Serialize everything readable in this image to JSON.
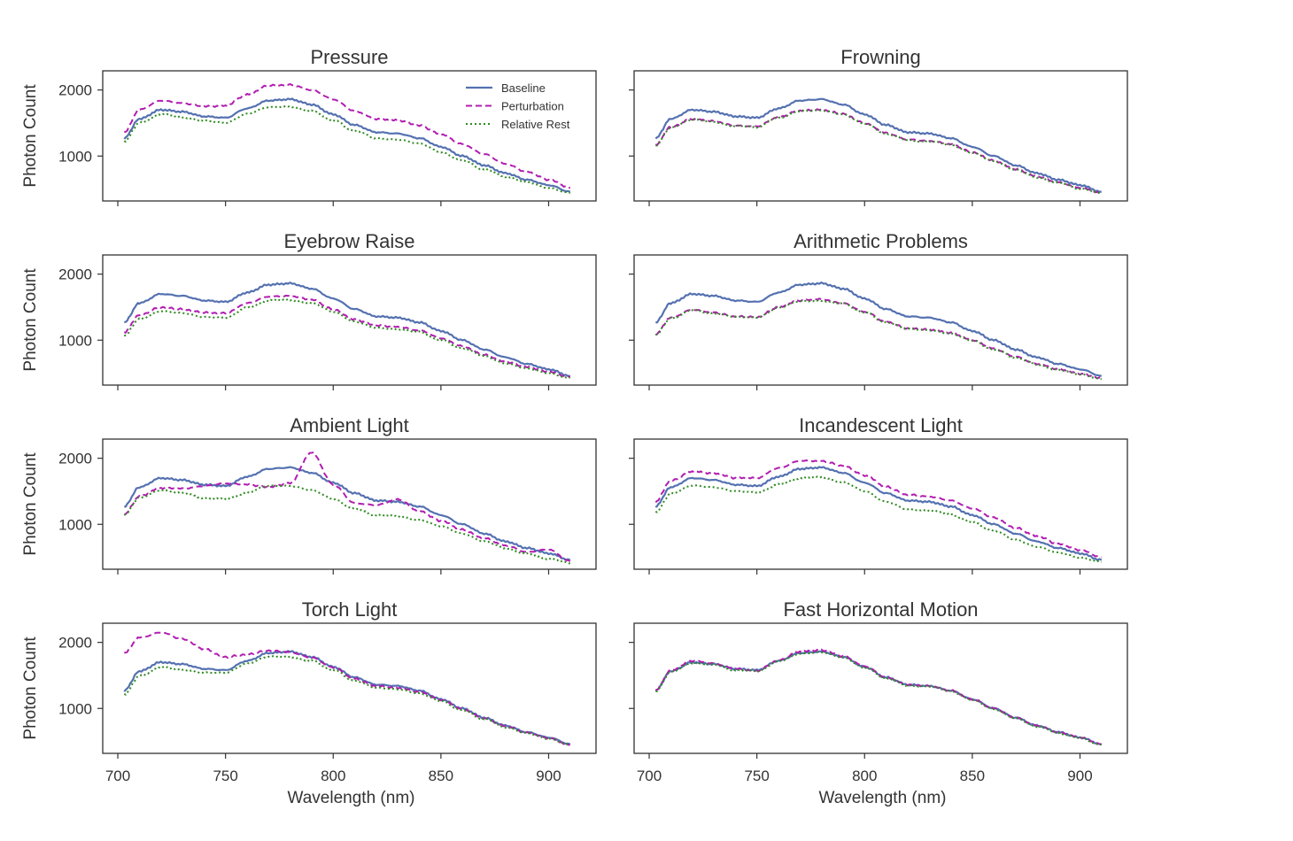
{
  "chart_data": {
    "type": "line",
    "layout": "grid 4 rows x 2 columns",
    "shared_x_axis": {
      "label": "Wavelength (nm)",
      "xlim": [
        693,
        922
      ],
      "ticks": [
        700,
        750,
        800,
        850,
        900
      ],
      "tick_labels": [
        "700",
        "750",
        "800",
        "850",
        "900"
      ]
    },
    "shared_y_axis": {
      "label": "Photon Count",
      "ylim": [
        320,
        2290
      ],
      "ticks": [
        1000,
        2000
      ],
      "tick_labels": [
        "1000",
        "2000"
      ]
    },
    "legend": {
      "location": "top-right of first panel",
      "entries": [
        {
          "name": "Baseline",
          "style": "solid",
          "color": "#5471b0"
        },
        {
          "name": "Perturbation",
          "style": "dashed",
          "color": "#b11db1"
        },
        {
          "name": "Relative Rest",
          "style": "dotted",
          "color": "#2f8a22"
        }
      ]
    },
    "x": [
      703,
      710,
      720,
      730,
      740,
      750,
      760,
      770,
      780,
      790,
      800,
      810,
      820,
      830,
      840,
      850,
      860,
      870,
      880,
      890,
      900,
      910
    ],
    "baseline_values": [
      1270,
      1560,
      1700,
      1670,
      1600,
      1580,
      1720,
      1840,
      1860,
      1780,
      1630,
      1470,
      1360,
      1340,
      1270,
      1140,
      1000,
      860,
      740,
      640,
      560,
      460
    ],
    "panels": [
      {
        "title": "Pressure",
        "series": [
          {
            "name": "Baseline",
            "values": [
              1270,
              1560,
              1700,
              1670,
              1600,
              1580,
              1720,
              1840,
              1860,
              1780,
              1630,
              1470,
              1360,
              1340,
              1270,
              1140,
              1000,
              860,
              740,
              640,
              560,
              460
            ]
          },
          {
            "name": "Perturbation",
            "values": [
              1360,
              1700,
              1840,
              1800,
              1750,
              1760,
              1930,
              2070,
              2080,
              2000,
              1860,
              1680,
              1560,
              1540,
              1460,
              1330,
              1180,
              1030,
              880,
              760,
              640,
              520
            ]
          },
          {
            "name": "Relative Rest",
            "values": [
              1220,
              1500,
              1630,
              1590,
              1530,
              1500,
              1640,
              1740,
              1750,
              1680,
              1540,
              1380,
              1270,
              1250,
              1190,
              1060,
              930,
              800,
              690,
              600,
              520,
              440
            ]
          }
        ]
      },
      {
        "title": "Frowning",
        "series": [
          {
            "name": "Baseline",
            "values": [
              1270,
              1560,
              1700,
              1670,
              1600,
              1580,
              1720,
              1840,
              1860,
              1780,
              1630,
              1470,
              1360,
              1340,
              1270,
              1140,
              1000,
              860,
              740,
              640,
              560,
              460
            ]
          },
          {
            "name": "Perturbation",
            "values": [
              1170,
              1440,
              1560,
              1530,
              1460,
              1450,
              1590,
              1690,
              1700,
              1640,
              1500,
              1350,
              1250,
              1230,
              1180,
              1060,
              930,
              800,
              690,
              600,
              520,
              440
            ]
          },
          {
            "name": "Relative Rest",
            "values": [
              1160,
              1430,
              1550,
              1520,
              1450,
              1440,
              1580,
              1680,
              1690,
              1630,
              1490,
              1340,
              1240,
              1220,
              1170,
              1050,
              920,
              790,
              680,
              590,
              510,
              430
            ]
          }
        ]
      },
      {
        "title": "Eyebrow Raise",
        "series": [
          {
            "name": "Baseline",
            "values": [
              1270,
              1560,
              1700,
              1670,
              1600,
              1580,
              1720,
              1840,
              1860,
              1780,
              1630,
              1470,
              1360,
              1340,
              1270,
              1140,
              1000,
              860,
              740,
              640,
              560,
              460
            ]
          },
          {
            "name": "Perturbation",
            "values": [
              1120,
              1380,
              1500,
              1470,
              1420,
              1410,
              1560,
              1660,
              1670,
              1610,
              1470,
              1310,
              1220,
              1200,
              1150,
              1030,
              910,
              780,
              670,
              590,
              520,
              440
            ]
          },
          {
            "name": "Relative Rest",
            "values": [
              1070,
              1320,
              1440,
              1410,
              1350,
              1340,
              1490,
              1600,
              1610,
              1560,
              1430,
              1280,
              1190,
              1170,
              1120,
              1000,
              880,
              760,
              650,
              570,
              500,
              430
            ]
          }
        ]
      },
      {
        "title": "Arithmetic Problems",
        "series": [
          {
            "name": "Baseline",
            "values": [
              1270,
              1560,
              1700,
              1670,
              1600,
              1580,
              1720,
              1840,
              1860,
              1780,
              1630,
              1470,
              1360,
              1340,
              1270,
              1140,
              1000,
              860,
              740,
              640,
              560,
              460
            ]
          },
          {
            "name": "Perturbation",
            "values": [
              1090,
              1340,
              1460,
              1420,
              1360,
              1350,
              1500,
              1600,
              1620,
              1560,
              1430,
              1280,
              1180,
              1160,
              1110,
              1000,
              870,
              750,
              640,
              560,
              490,
              420
            ]
          },
          {
            "name": "Relative Rest",
            "values": [
              1080,
              1330,
              1450,
              1410,
              1350,
              1340,
              1490,
              1590,
              1600,
              1550,
              1420,
              1270,
              1170,
              1150,
              1100,
              990,
              860,
              740,
              630,
              550,
              480,
              410
            ]
          }
        ]
      },
      {
        "title": "Ambient Light",
        "series": [
          {
            "name": "Baseline",
            "values": [
              1270,
              1560,
              1700,
              1670,
              1600,
              1580,
              1720,
              1840,
              1860,
              1780,
              1630,
              1470,
              1360,
              1340,
              1270,
              1140,
              1000,
              860,
              740,
              640,
              560,
              460
            ]
          },
          {
            "name": "Perturbation",
            "values": [
              1150,
              1420,
              1550,
              1540,
              1580,
              1620,
              1600,
              1560,
              1620,
              2090,
              1600,
              1320,
              1290,
              1380,
              1200,
              1050,
              920,
              790,
              680,
              580,
              620,
              440
            ]
          },
          {
            "name": "Relative Rest",
            "values": [
              1140,
              1400,
              1520,
              1470,
              1400,
              1380,
              1480,
              1580,
              1580,
              1520,
              1380,
              1230,
              1140,
              1120,
              1070,
              970,
              860,
              740,
              640,
              550,
              480,
              410
            ]
          }
        ]
      },
      {
        "title": "Incandescent Light",
        "series": [
          {
            "name": "Baseline",
            "values": [
              1270,
              1560,
              1700,
              1670,
              1600,
              1580,
              1720,
              1840,
              1860,
              1780,
              1630,
              1470,
              1360,
              1340,
              1270,
              1140,
              1000,
              860,
              740,
              640,
              560,
              460
            ]
          },
          {
            "name": "Perturbation",
            "values": [
              1340,
              1660,
              1800,
              1770,
              1700,
              1700,
              1850,
              1960,
              1960,
              1890,
              1740,
              1570,
              1450,
              1420,
              1360,
              1240,
              1100,
              950,
              820,
              700,
              610,
              500
            ]
          },
          {
            "name": "Relative Rest",
            "values": [
              1180,
              1460,
              1590,
              1560,
              1500,
              1480,
              1600,
              1700,
              1710,
              1640,
              1500,
              1340,
              1230,
              1210,
              1150,
              1030,
              900,
              770,
              660,
              570,
              500,
              430
            ]
          }
        ]
      },
      {
        "title": "Torch Light",
        "series": [
          {
            "name": "Baseline",
            "values": [
              1270,
              1560,
              1700,
              1670,
              1600,
              1580,
              1720,
              1840,
              1860,
              1780,
              1630,
              1470,
              1360,
              1340,
              1270,
              1140,
              1000,
              860,
              740,
              640,
              560,
              460
            ]
          },
          {
            "name": "Perturbation",
            "values": [
              1840,
              2070,
              2150,
              2050,
              1900,
              1780,
              1820,
              1880,
              1850,
              1770,
              1620,
              1450,
              1340,
              1310,
              1250,
              1130,
              990,
              850,
              730,
              630,
              550,
              450
            ]
          },
          {
            "name": "Relative Rest",
            "values": [
              1210,
              1490,
              1620,
              1590,
              1540,
              1540,
              1680,
              1780,
              1780,
              1720,
              1580,
              1420,
              1310,
              1290,
              1230,
              1110,
              970,
              840,
              720,
              620,
              540,
              450
            ]
          }
        ]
      },
      {
        "title": "Fast Horizontal Motion",
        "series": [
          {
            "name": "Baseline",
            "values": [
              1270,
              1560,
              1700,
              1670,
              1600,
              1580,
              1720,
              1840,
              1860,
              1780,
              1630,
              1470,
              1360,
              1340,
              1270,
              1140,
              1000,
              860,
              740,
              640,
              560,
              460
            ]
          },
          {
            "name": "Perturbation",
            "values": [
              1280,
              1570,
              1720,
              1680,
              1600,
              1570,
              1730,
              1860,
              1880,
              1790,
              1640,
              1470,
              1360,
              1340,
              1270,
              1140,
              1000,
              860,
              740,
              640,
              560,
              460
            ]
          },
          {
            "name": "Relative Rest",
            "values": [
              1260,
              1550,
              1690,
              1660,
              1580,
              1560,
              1710,
              1830,
              1850,
              1770,
              1620,
              1460,
              1350,
              1330,
              1260,
              1130,
              990,
              850,
              730,
              630,
              550,
              450
            ]
          }
        ]
      }
    ]
  }
}
